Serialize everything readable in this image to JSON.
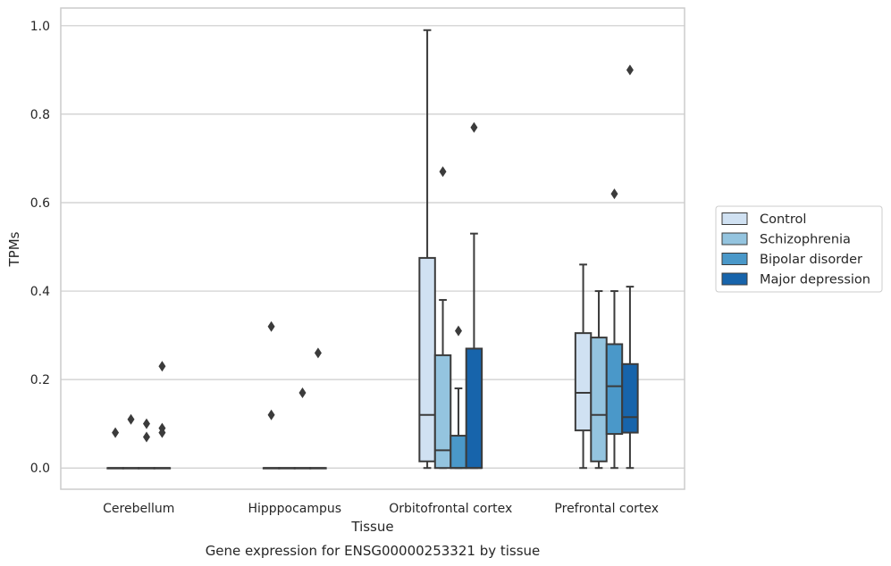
{
  "caption": "Gene expression for ENSG00000253321 by tissue",
  "chart_data": {
    "type": "box",
    "xlabel": "Tissue",
    "ylabel": "TPMs",
    "ylim": [
      -0.048,
      1.04
    ],
    "yticks": [
      "0.0",
      "0.2",
      "0.4",
      "0.6",
      "0.8",
      "1.0"
    ],
    "grid": true,
    "legend_position": "right",
    "categories": [
      "Cerebellum",
      "Hipppocampus",
      "Orbitofrontal cortex",
      "Prefrontal cortex"
    ],
    "series": [
      {
        "name": "Control",
        "color": "#d0e1f2",
        "boxes": [
          {
            "min": 0,
            "q1": 0,
            "median": 0,
            "q3": 0,
            "max": 0,
            "outliers": [
              0.08
            ]
          },
          {
            "min": 0,
            "q1": 0,
            "median": 0,
            "q3": 0,
            "max": 0,
            "outliers": [
              0.32,
              0.12
            ]
          },
          {
            "min": 0,
            "q1": 0.015,
            "median": 0.12,
            "q3": 0.475,
            "max": 0.99,
            "outliers": []
          },
          {
            "min": 0,
            "q1": 0.085,
            "median": 0.17,
            "q3": 0.305,
            "max": 0.46,
            "outliers": []
          }
        ]
      },
      {
        "name": "Schizophrenia",
        "color": "#94c4df",
        "boxes": [
          {
            "min": 0,
            "q1": 0,
            "median": 0,
            "q3": 0,
            "max": 0,
            "outliers": [
              0.11
            ]
          },
          {
            "min": 0,
            "q1": 0,
            "median": 0,
            "q3": 0,
            "max": 0,
            "outliers": []
          },
          {
            "min": 0,
            "q1": 0,
            "median": 0.04,
            "q3": 0.255,
            "max": 0.38,
            "outliers": [
              0.67
            ]
          },
          {
            "min": 0,
            "q1": 0.015,
            "median": 0.12,
            "q3": 0.295,
            "max": 0.4,
            "outliers": []
          }
        ]
      },
      {
        "name": "Bipolar disorder",
        "color": "#4a98c9",
        "boxes": [
          {
            "min": 0,
            "q1": 0,
            "median": 0,
            "q3": 0,
            "max": 0,
            "outliers": [
              0.1,
              0.07
            ]
          },
          {
            "min": 0,
            "q1": 0,
            "median": 0,
            "q3": 0,
            "max": 0,
            "outliers": [
              0.17
            ]
          },
          {
            "min": 0,
            "q1": 0,
            "median": 0,
            "q3": 0.073,
            "max": 0.18,
            "outliers": [
              0.31
            ]
          },
          {
            "min": 0,
            "q1": 0.077,
            "median": 0.185,
            "q3": 0.28,
            "max": 0.4,
            "outliers": [
              0.62
            ]
          }
        ]
      },
      {
        "name": "Major depression",
        "color": "#1764ab",
        "boxes": [
          {
            "min": 0,
            "q1": 0,
            "median": 0,
            "q3": 0,
            "max": 0,
            "outliers": [
              0.23,
              0.09,
              0.08
            ]
          },
          {
            "min": 0,
            "q1": 0,
            "median": 0,
            "q3": 0,
            "max": 0,
            "outliers": [
              0.26
            ]
          },
          {
            "min": 0,
            "q1": 0,
            "median": 0,
            "q3": 0.27,
            "max": 0.53,
            "outliers": [
              0.77
            ]
          },
          {
            "min": 0,
            "q1": 0.08,
            "median": 0.115,
            "q3": 0.235,
            "max": 0.41,
            "outliers": [
              0.9
            ]
          }
        ]
      }
    ]
  }
}
